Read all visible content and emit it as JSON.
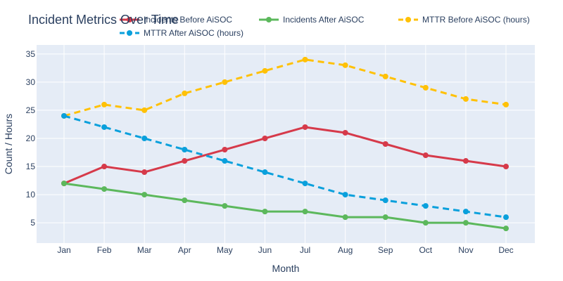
{
  "chart_data": {
    "type": "line",
    "title": "Incident Metrics Over Time",
    "xlabel": "Month",
    "ylabel": "Count / Hours",
    "categories": [
      "Jan",
      "Feb",
      "Mar",
      "Apr",
      "May",
      "Jun",
      "Jul",
      "Aug",
      "Sep",
      "Oct",
      "Nov",
      "Dec"
    ],
    "ylim": [
      1.4,
      36.6
    ],
    "yticks": [
      5,
      10,
      15,
      20,
      25,
      30,
      35
    ],
    "grid": true,
    "legend_position": "top",
    "plot_background": "#e5ecf6",
    "series": [
      {
        "name": "Incidents Before AiSOC",
        "color": "#d63a4a",
        "dash": "solid",
        "values": [
          12,
          15,
          14,
          16,
          18,
          20,
          22,
          21,
          19,
          17,
          16,
          15
        ]
      },
      {
        "name": "Incidents After AiSOC",
        "color": "#5cb85c",
        "dash": "solid",
        "values": [
          12,
          11,
          10,
          9,
          8,
          7,
          7,
          6,
          6,
          5,
          5,
          4
        ]
      },
      {
        "name": "MTTR Before AiSOC (hours)",
        "color": "#ffc107",
        "dash": "dash",
        "values": [
          24,
          26,
          25,
          28,
          30,
          32,
          34,
          33,
          31,
          29,
          27,
          26
        ]
      },
      {
        "name": "MTTR After AiSOC (hours)",
        "color": "#0aa0dc",
        "dash": "dash",
        "values": [
          24,
          22,
          20,
          18,
          16,
          14,
          12,
          10,
          9,
          8,
          7,
          6
        ]
      }
    ]
  }
}
